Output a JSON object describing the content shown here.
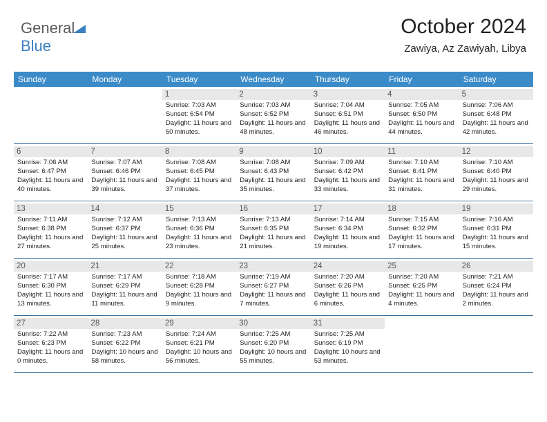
{
  "brand": {
    "part1": "General",
    "part2": "Blue"
  },
  "header": {
    "month": "October 2024",
    "location": "Zawiya, Az Zawiyah, Libya"
  },
  "colors": {
    "header_bg": "#3b8bc8",
    "rule": "#3b6f9a",
    "daybg": "#e8e8e8"
  },
  "weekdays": [
    "Sunday",
    "Monday",
    "Tuesday",
    "Wednesday",
    "Thursday",
    "Friday",
    "Saturday"
  ],
  "weeks": [
    [
      {
        "blank": true
      },
      {
        "blank": true
      },
      {
        "n": "1",
        "sr": "7:03 AM",
        "ss": "6:54 PM",
        "dl": "11 hours and 50 minutes."
      },
      {
        "n": "2",
        "sr": "7:03 AM",
        "ss": "6:52 PM",
        "dl": "11 hours and 48 minutes."
      },
      {
        "n": "3",
        "sr": "7:04 AM",
        "ss": "6:51 PM",
        "dl": "11 hours and 46 minutes."
      },
      {
        "n": "4",
        "sr": "7:05 AM",
        "ss": "6:50 PM",
        "dl": "11 hours and 44 minutes."
      },
      {
        "n": "5",
        "sr": "7:06 AM",
        "ss": "6:48 PM",
        "dl": "11 hours and 42 minutes."
      }
    ],
    [
      {
        "n": "6",
        "sr": "7:06 AM",
        "ss": "6:47 PM",
        "dl": "11 hours and 40 minutes."
      },
      {
        "n": "7",
        "sr": "7:07 AM",
        "ss": "6:46 PM",
        "dl": "11 hours and 39 minutes."
      },
      {
        "n": "8",
        "sr": "7:08 AM",
        "ss": "6:45 PM",
        "dl": "11 hours and 37 minutes."
      },
      {
        "n": "9",
        "sr": "7:08 AM",
        "ss": "6:43 PM",
        "dl": "11 hours and 35 minutes."
      },
      {
        "n": "10",
        "sr": "7:09 AM",
        "ss": "6:42 PM",
        "dl": "11 hours and 33 minutes."
      },
      {
        "n": "11",
        "sr": "7:10 AM",
        "ss": "6:41 PM",
        "dl": "11 hours and 31 minutes."
      },
      {
        "n": "12",
        "sr": "7:10 AM",
        "ss": "6:40 PM",
        "dl": "11 hours and 29 minutes."
      }
    ],
    [
      {
        "n": "13",
        "sr": "7:11 AM",
        "ss": "6:38 PM",
        "dl": "11 hours and 27 minutes."
      },
      {
        "n": "14",
        "sr": "7:12 AM",
        "ss": "6:37 PM",
        "dl": "11 hours and 25 minutes."
      },
      {
        "n": "15",
        "sr": "7:13 AM",
        "ss": "6:36 PM",
        "dl": "11 hours and 23 minutes."
      },
      {
        "n": "16",
        "sr": "7:13 AM",
        "ss": "6:35 PM",
        "dl": "11 hours and 21 minutes."
      },
      {
        "n": "17",
        "sr": "7:14 AM",
        "ss": "6:34 PM",
        "dl": "11 hours and 19 minutes."
      },
      {
        "n": "18",
        "sr": "7:15 AM",
        "ss": "6:32 PM",
        "dl": "11 hours and 17 minutes."
      },
      {
        "n": "19",
        "sr": "7:16 AM",
        "ss": "6:31 PM",
        "dl": "11 hours and 15 minutes."
      }
    ],
    [
      {
        "n": "20",
        "sr": "7:17 AM",
        "ss": "6:30 PM",
        "dl": "11 hours and 13 minutes."
      },
      {
        "n": "21",
        "sr": "7:17 AM",
        "ss": "6:29 PM",
        "dl": "11 hours and 11 minutes."
      },
      {
        "n": "22",
        "sr": "7:18 AM",
        "ss": "6:28 PM",
        "dl": "11 hours and 9 minutes."
      },
      {
        "n": "23",
        "sr": "7:19 AM",
        "ss": "6:27 PM",
        "dl": "11 hours and 7 minutes."
      },
      {
        "n": "24",
        "sr": "7:20 AM",
        "ss": "6:26 PM",
        "dl": "11 hours and 6 minutes."
      },
      {
        "n": "25",
        "sr": "7:20 AM",
        "ss": "6:25 PM",
        "dl": "11 hours and 4 minutes."
      },
      {
        "n": "26",
        "sr": "7:21 AM",
        "ss": "6:24 PM",
        "dl": "11 hours and 2 minutes."
      }
    ],
    [
      {
        "n": "27",
        "sr": "7:22 AM",
        "ss": "6:23 PM",
        "dl": "11 hours and 0 minutes."
      },
      {
        "n": "28",
        "sr": "7:23 AM",
        "ss": "6:22 PM",
        "dl": "10 hours and 58 minutes."
      },
      {
        "n": "29",
        "sr": "7:24 AM",
        "ss": "6:21 PM",
        "dl": "10 hours and 56 minutes."
      },
      {
        "n": "30",
        "sr": "7:25 AM",
        "ss": "6:20 PM",
        "dl": "10 hours and 55 minutes."
      },
      {
        "n": "31",
        "sr": "7:25 AM",
        "ss": "6:19 PM",
        "dl": "10 hours and 53 minutes."
      },
      {
        "blank": true
      },
      {
        "blank": true
      }
    ]
  ],
  "labels": {
    "sunrise": "Sunrise: ",
    "sunset": "Sunset: ",
    "daylight": "Daylight: "
  }
}
